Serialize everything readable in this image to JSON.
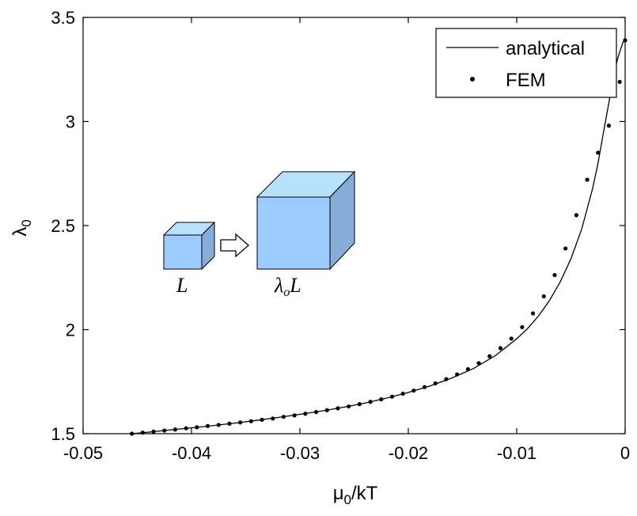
{
  "chart_data": {
    "type": "line",
    "title": "",
    "xlabel": {
      "main": "μ",
      "sub": "0",
      "rest": "/kT"
    },
    "ylabel": {
      "main": "λ",
      "sub": "0"
    },
    "xlim": [
      -0.05,
      0
    ],
    "ylim": [
      1.5,
      3.5
    ],
    "x_ticks": [
      -0.05,
      -0.04,
      -0.03,
      -0.02,
      -0.01,
      0
    ],
    "x_tick_labels": [
      "-0.05",
      "-0.04",
      "-0.03",
      "-0.02",
      "-0.01",
      "0"
    ],
    "y_ticks": [
      1.5,
      2,
      2.5,
      3,
      3.5
    ],
    "y_tick_labels": [
      "1.5",
      "2",
      "2.5",
      "3",
      "3.5"
    ],
    "grid": false,
    "legend_position": "top-right",
    "series": [
      {
        "name": "analytical",
        "style": "line",
        "color": "#000000",
        "x": [
          -0.0455,
          -0.044,
          -0.042,
          -0.04,
          -0.038,
          -0.036,
          -0.034,
          -0.032,
          -0.03,
          -0.028,
          -0.026,
          -0.024,
          -0.022,
          -0.02,
          -0.018,
          -0.016,
          -0.014,
          -0.012,
          -0.01,
          -0.009,
          -0.008,
          -0.007,
          -0.006,
          -0.005,
          -0.004,
          -0.003,
          -0.0025,
          -0.002,
          -0.0015,
          -0.001,
          -0.0007,
          -0.0004,
          -0.0002,
          0
        ],
        "y": [
          1.5,
          1.507,
          1.518,
          1.528,
          1.539,
          1.551,
          1.564,
          1.578,
          1.593,
          1.609,
          1.627,
          1.647,
          1.671,
          1.698,
          1.729,
          1.767,
          1.813,
          1.874,
          1.956,
          2.005,
          2.065,
          2.138,
          2.228,
          2.34,
          2.484,
          2.678,
          2.8,
          2.947,
          3.09,
          3.23,
          3.3,
          3.35,
          3.38,
          3.4
        ]
      },
      {
        "name": "FEM",
        "style": "markers",
        "color": "#000000",
        "x": [
          -0.0455,
          -0.0445,
          -0.0435,
          -0.0425,
          -0.0415,
          -0.0405,
          -0.0395,
          -0.0385,
          -0.0375,
          -0.0365,
          -0.0355,
          -0.0345,
          -0.0335,
          -0.0325,
          -0.0315,
          -0.0305,
          -0.0295,
          -0.0285,
          -0.0275,
          -0.0265,
          -0.0255,
          -0.0245,
          -0.0235,
          -0.0225,
          -0.0215,
          -0.0205,
          -0.0195,
          -0.0185,
          -0.0175,
          -0.0165,
          -0.0155,
          -0.0145,
          -0.0135,
          -0.0125,
          -0.0115,
          -0.0105,
          -0.0095,
          -0.0085,
          -0.0075,
          -0.0065,
          -0.0055,
          -0.0045,
          -0.0035,
          -0.0025,
          -0.0015,
          -0.0005,
          0
        ],
        "y": [
          1.5,
          1.505,
          1.51,
          1.515,
          1.52,
          1.526,
          1.531,
          1.537,
          1.542,
          1.548,
          1.554,
          1.56,
          1.567,
          1.573,
          1.581,
          1.588,
          1.596,
          1.604,
          1.613,
          1.622,
          1.631,
          1.642,
          1.653,
          1.665,
          1.678,
          1.692,
          1.707,
          1.724,
          1.742,
          1.762,
          1.785,
          1.81,
          1.839,
          1.872,
          1.911,
          1.957,
          2.012,
          2.078,
          2.16,
          2.262,
          2.39,
          2.55,
          2.72,
          2.85,
          2.98,
          3.19,
          3.39
        ]
      }
    ],
    "inset_labels": {
      "small_cube": "L",
      "large_cube_prefix": "λ",
      "large_cube_sub": "o",
      "large_cube_suffix": "L"
    },
    "colors": {
      "cube_front": "#9ecbff",
      "cube_top": "#b8e2fb",
      "cube_side": "#86acd8",
      "axis": "#000000"
    }
  }
}
